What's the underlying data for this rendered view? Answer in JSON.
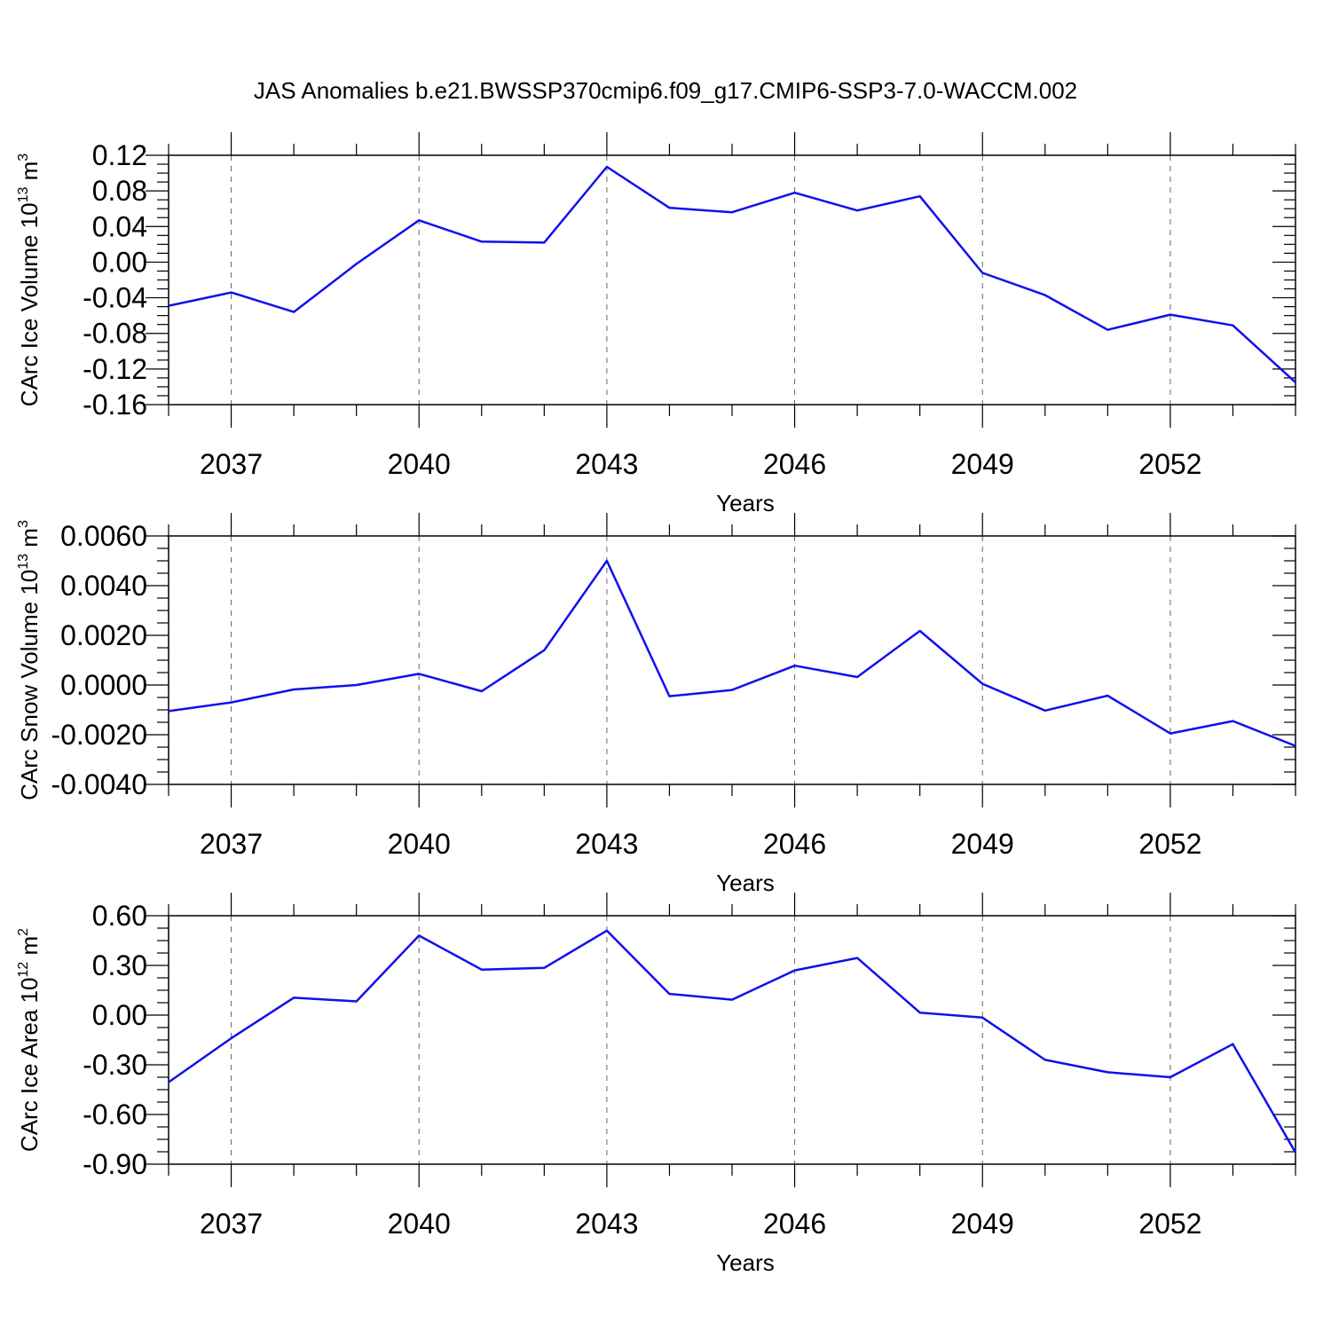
{
  "title": "JAS Anomalies b.e21.BWSSP370cmip6.f09_g17.CMIP6-SSP3-7.0-WACCM.002",
  "colors": {
    "line": "#1010ee",
    "axis": "#000000",
    "grid": "#666666"
  },
  "chart_data": [
    {
      "type": "line",
      "id": "ice-volume",
      "ylabel_main": "CArc Ice Volume 10",
      "ylabel_sup": "13",
      "ylabel_unit": " m",
      "ylabel_unit_sup": "3",
      "xlabel": "Years",
      "xlim": [
        2036,
        2054
      ],
      "ylim": [
        -0.16,
        0.12
      ],
      "yticks": [
        0.12,
        0.08,
        0.04,
        0.0,
        -0.04,
        -0.08,
        -0.12,
        -0.16
      ],
      "ytick_labels": [
        "0.12",
        "0.08",
        "0.04",
        "0.00",
        "-0.04",
        "-0.08",
        "-0.12",
        "-0.16"
      ],
      "xticks": [
        2037,
        2040,
        2043,
        2046,
        2049,
        2052
      ],
      "xtick_labels": [
        "2037",
        "2040",
        "2043",
        "2046",
        "2049",
        "2052"
      ],
      "x": [
        2036,
        2037,
        2038,
        2039,
        2040,
        2041,
        2042,
        2043,
        2044,
        2045,
        2046,
        2047,
        2048,
        2049,
        2050,
        2051,
        2052,
        2053,
        2054
      ],
      "values": [
        -0.049,
        -0.034,
        -0.056,
        -0.002,
        0.047,
        0.023,
        0.022,
        0.107,
        0.061,
        0.056,
        0.078,
        0.058,
        0.074,
        -0.012,
        -0.037,
        -0.076,
        -0.059,
        -0.071,
        -0.135
      ]
    },
    {
      "type": "line",
      "id": "snow-volume",
      "ylabel_main": "CArc Snow Volume 10",
      "ylabel_sup": "13",
      "ylabel_unit": " m",
      "ylabel_unit_sup": "3",
      "xlabel": "Years",
      "xlim": [
        2036,
        2054
      ],
      "ylim": [
        -0.004,
        0.006
      ],
      "yticks": [
        0.006,
        0.004,
        0.002,
        0.0,
        -0.002,
        -0.004
      ],
      "ytick_labels": [
        "0.0060",
        "0.0040",
        "0.0020",
        "0.0000",
        "-0.0020",
        "-0.0040"
      ],
      "xticks": [
        2037,
        2040,
        2043,
        2046,
        2049,
        2052
      ],
      "xtick_labels": [
        "2037",
        "2040",
        "2043",
        "2046",
        "2049",
        "2052"
      ],
      "x": [
        2036,
        2037,
        2038,
        2039,
        2040,
        2041,
        2042,
        2043,
        2044,
        2045,
        2046,
        2047,
        2048,
        2049,
        2050,
        2051,
        2052,
        2053,
        2054
      ],
      "values": [
        -0.00105,
        -0.0007,
        -0.00018,
        0.0,
        0.00045,
        -0.00025,
        0.0014,
        0.005,
        -0.00045,
        -0.0002,
        0.00078,
        0.00032,
        0.00218,
        5e-05,
        -0.00103,
        -0.00043,
        -0.00195,
        -0.00145,
        -0.00245
      ]
    },
    {
      "type": "line",
      "id": "ice-area",
      "ylabel_main": "CArc Ice Area 10",
      "ylabel_sup": "12",
      "ylabel_unit": " m",
      "ylabel_unit_sup": "2",
      "xlabel": "Years",
      "xlim": [
        2036,
        2054
      ],
      "ylim": [
        -0.9,
        0.6
      ],
      "yticks": [
        0.6,
        0.3,
        0.0,
        -0.3,
        -0.6,
        -0.9
      ],
      "ytick_labels": [
        "0.60",
        "0.30",
        "0.00",
        "-0.30",
        "-0.60",
        "-0.90"
      ],
      "xticks": [
        2037,
        2040,
        2043,
        2046,
        2049,
        2052
      ],
      "xtick_labels": [
        "2037",
        "2040",
        "2043",
        "2046",
        "2049",
        "2052"
      ],
      "x": [
        2036,
        2037,
        2038,
        2039,
        2040,
        2041,
        2042,
        2043,
        2044,
        2045,
        2046,
        2047,
        2048,
        2049,
        2050,
        2051,
        2052,
        2053,
        2054
      ],
      "values": [
        -0.405,
        -0.14,
        0.105,
        0.083,
        0.48,
        0.275,
        0.285,
        0.51,
        0.128,
        0.093,
        0.27,
        0.345,
        0.015,
        -0.015,
        -0.27,
        -0.345,
        -0.375,
        -0.175,
        -0.83
      ]
    }
  ]
}
